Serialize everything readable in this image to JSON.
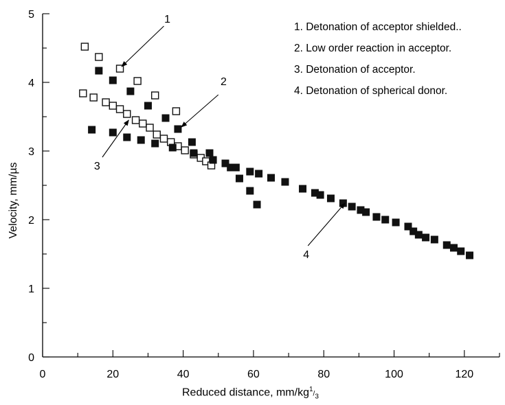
{
  "chart_data": {
    "type": "scatter",
    "title": "",
    "xlabel": "Reduced distance, mm/kg",
    "xlabel_sup": "1",
    "xlabel_sub": "3",
    "ylabel": "Velocity, mm/µs",
    "xlim": [
      0,
      130
    ],
    "ylim": [
      0,
      5
    ],
    "x_ticks": [
      0,
      20,
      40,
      60,
      80,
      100,
      120
    ],
    "y_ticks": [
      0,
      1,
      2,
      3,
      4,
      5
    ],
    "grid": false,
    "legend": {
      "placement": "top-right",
      "entries": [
        "1. Detonation of acceptor shielded..",
        "2. Low order reaction in acceptor.",
        "3. Detonation of acceptor.",
        "4. Detonation of spherical donor."
      ]
    },
    "series": [
      {
        "marker": "open-square",
        "points": [
          [
            12,
            4.52
          ],
          [
            16,
            4.37
          ],
          [
            22,
            4.2
          ],
          [
            27,
            4.02
          ],
          [
            32,
            3.81
          ],
          [
            38,
            3.58
          ],
          [
            11.5,
            3.84
          ],
          [
            14.5,
            3.78
          ],
          [
            18,
            3.71
          ],
          [
            20,
            3.66
          ],
          [
            22,
            3.61
          ],
          [
            24,
            3.54
          ],
          [
            26.5,
            3.45
          ],
          [
            28.5,
            3.4
          ],
          [
            30.5,
            3.34
          ],
          [
            32.5,
            3.24
          ],
          [
            34.5,
            3.18
          ],
          [
            36.5,
            3.13
          ],
          [
            38.5,
            3.07
          ],
          [
            40.5,
            3.01
          ],
          [
            43,
            2.95
          ],
          [
            45,
            2.9
          ],
          [
            46.5,
            2.85
          ],
          [
            48,
            2.79
          ]
        ]
      },
      {
        "marker": "filled-square",
        "points": [
          [
            16,
            4.17
          ],
          [
            20,
            4.03
          ],
          [
            25,
            3.87
          ],
          [
            30,
            3.66
          ],
          [
            35,
            3.48
          ],
          [
            38.5,
            3.32
          ],
          [
            14,
            3.31
          ],
          [
            20,
            3.27
          ],
          [
            24,
            3.2
          ],
          [
            28,
            3.16
          ],
          [
            32,
            3.11
          ],
          [
            37,
            3.05
          ],
          [
            42.5,
            3.13
          ],
          [
            43,
            2.97
          ],
          [
            47.5,
            2.97
          ],
          [
            48.5,
            2.87
          ],
          [
            52,
            2.82
          ],
          [
            53.5,
            2.76
          ],
          [
            55,
            2.76
          ],
          [
            56,
            2.6
          ],
          [
            59,
            2.7
          ],
          [
            61.5,
            2.67
          ],
          [
            65,
            2.61
          ],
          [
            59,
            2.42
          ],
          [
            61,
            2.22
          ],
          [
            69,
            2.55
          ],
          [
            74,
            2.45
          ],
          [
            77.5,
            2.39
          ],
          [
            79,
            2.36
          ],
          [
            82,
            2.31
          ],
          [
            85.5,
            2.24
          ],
          [
            88,
            2.19
          ],
          [
            90.5,
            2.14
          ],
          [
            92,
            2.11
          ],
          [
            95,
            2.04
          ],
          [
            97.5,
            2.0
          ],
          [
            100.5,
            1.96
          ],
          [
            104,
            1.9
          ],
          [
            105.5,
            1.83
          ],
          [
            107,
            1.78
          ],
          [
            109,
            1.74
          ],
          [
            111.5,
            1.71
          ],
          [
            115,
            1.63
          ],
          [
            117,
            1.59
          ],
          [
            119,
            1.54
          ],
          [
            121.5,
            1.48
          ]
        ]
      }
    ],
    "annotations": [
      {
        "label": "1",
        "label_at": [
          35.5,
          4.87
        ],
        "arrow_from": [
          34.5,
          4.82
        ],
        "arrow_to": [
          22.5,
          4.23
        ]
      },
      {
        "label": "2",
        "label_at": [
          51.5,
          3.96
        ],
        "arrow_from": [
          50,
          3.82
        ],
        "arrow_to": [
          39.5,
          3.35
        ]
      },
      {
        "label": "3",
        "label_at": [
          15.5,
          2.73
        ],
        "arrow_from": [
          17,
          2.91
        ],
        "arrow_to": [
          24.5,
          3.45
        ]
      },
      {
        "label": "4",
        "label_at": [
          75,
          1.44
        ],
        "arrow_from": [
          75.5,
          1.62
        ],
        "arrow_to": [
          86,
          2.24
        ]
      }
    ]
  }
}
